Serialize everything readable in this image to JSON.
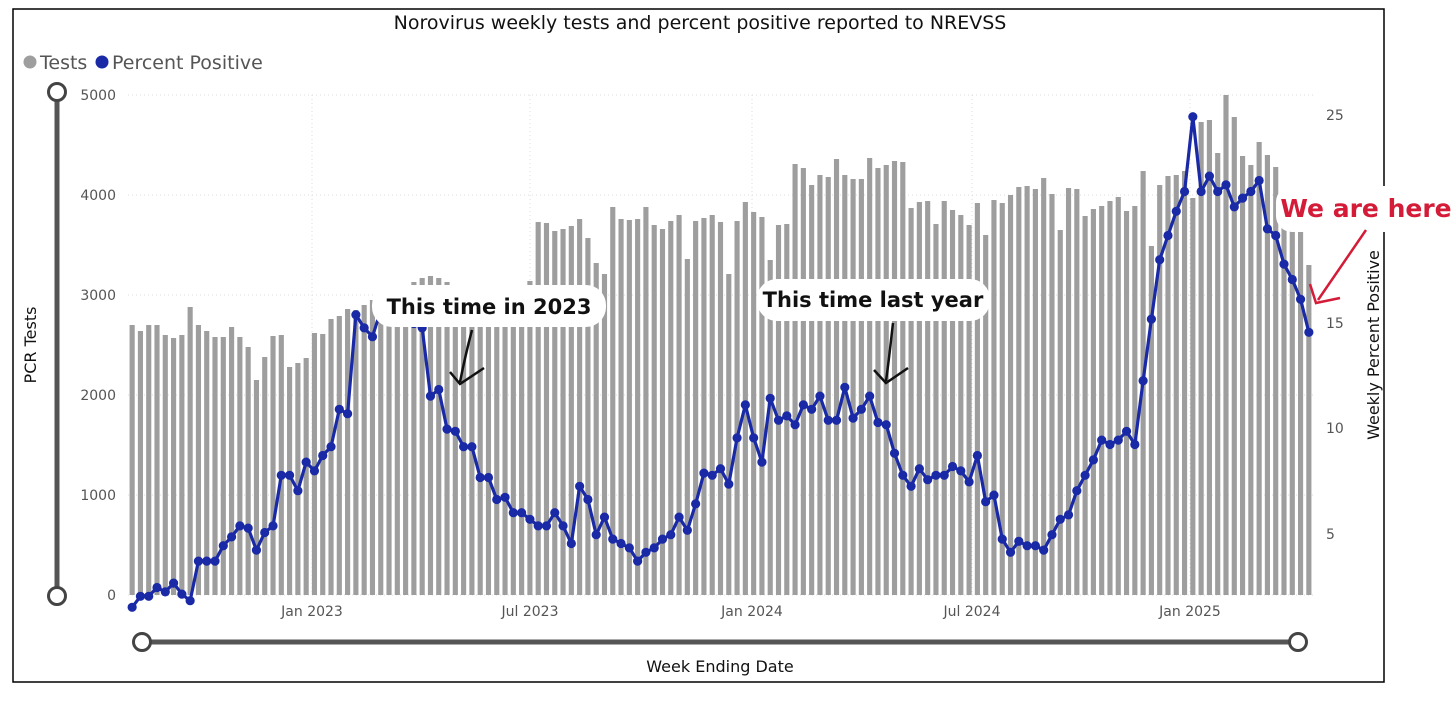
{
  "title": "Norovirus weekly tests and percent positive reported to NREVSS",
  "legend": [
    {
      "label": "Tests",
      "color": "#9e9e9e"
    },
    {
      "label": "Percent Positive",
      "color": "#1a2aa6"
    }
  ],
  "axes": {
    "y_left_title": "PCR Tests",
    "y_right_title": "Weekly Percent Positive",
    "x_title": "Week Ending Date",
    "y_left_ticks": [
      "0",
      "1000",
      "2000",
      "3000",
      "4000",
      "5000"
    ],
    "y_right_ticks": [
      "5",
      "10",
      "15",
      "20",
      "25"
    ],
    "x_ticks": [
      "Jan 2023",
      "Jul 2023",
      "Jan 2024",
      "Jul 2024",
      "Jan 2025"
    ]
  },
  "callouts": {
    "c2023": "This time in 2023",
    "last_year": "This time last year",
    "here": "We are here"
  },
  "chart_data": {
    "type": "bar+line",
    "title": "Norovirus weekly tests and percent positive reported to NREVSS",
    "xlabel": "Week Ending Date",
    "ylabel": "PCR Tests",
    "y2label": "Weekly Percent Positive",
    "ylim": [
      0,
      5000
    ],
    "y2lim": [
      1,
      26
    ],
    "grid": true,
    "legend_position": "top-left",
    "x_start": "2022-08-06",
    "x_interval": "weekly",
    "series": [
      {
        "name": "Tests",
        "type": "bar",
        "color": "#9e9e9e",
        "values": [
          2700,
          2640,
          2700,
          2700,
          2600,
          2570,
          2600,
          2880,
          2700,
          2640,
          2580,
          2580,
          2680,
          2580,
          2480,
          2150,
          2380,
          2590,
          2600,
          2280,
          2320,
          2370,
          2620,
          2610,
          2760,
          2790,
          2860,
          2850,
          2900,
          2950,
          2980,
          3020,
          3050,
          3080,
          3130,
          3170,
          3190,
          3170,
          3130,
          3080,
          3090,
          3100,
          3080,
          3100,
          3060,
          3080,
          3000,
          3050,
          3140,
          3730,
          3720,
          3640,
          3660,
          3690,
          3760,
          3570,
          3320,
          3210,
          3880,
          3760,
          3750,
          3760,
          3880,
          3700,
          3660,
          3740,
          3800,
          3360,
          3740,
          3770,
          3800,
          3730,
          3210,
          3740,
          3930,
          3830,
          3780,
          3350,
          3700,
          3710,
          4310,
          4270,
          4100,
          4200,
          4180,
          4360,
          4200,
          4160,
          4160,
          4370,
          4270,
          4300,
          4340,
          4330,
          3870,
          3930,
          3940,
          3710,
          3940,
          3850,
          3800,
          3700,
          3920,
          3600,
          3950,
          3920,
          4000,
          4080,
          4090,
          4060,
          4170,
          4010,
          3650,
          4070,
          4060,
          3790,
          3860,
          3890,
          3940,
          3980,
          3840,
          3890,
          4240,
          3490,
          4100,
          4190,
          4200,
          4240,
          3970,
          4730,
          4750,
          4420,
          5000,
          4780,
          4390,
          4300,
          4530,
          4400,
          4280,
          3730,
          3650,
          3720,
          3300
        ]
      },
      {
        "name": "Percent Positive",
        "type": "line",
        "color": "#1a2aa6",
        "values": [
          2.6,
          3.1,
          3.1,
          3.5,
          3.3,
          3.7,
          3.2,
          2.9,
          4.7,
          4.7,
          4.7,
          5.4,
          5.8,
          6.3,
          6.2,
          5.2,
          6.0,
          6.3,
          8.6,
          8.6,
          7.9,
          9.2,
          8.8,
          9.5,
          9.9,
          11.6,
          11.4,
          15.9,
          15.3,
          14.9,
          16.1,
          16.3,
          15.9,
          15.7,
          15.5,
          15.3,
          12.2,
          12.5,
          10.7,
          10.6,
          9.9,
          9.9,
          8.5,
          8.5,
          7.5,
          7.6,
          6.9,
          6.9,
          6.6,
          6.3,
          6.3,
          6.9,
          6.3,
          5.5,
          8.1,
          7.5,
          5.9,
          6.7,
          5.7,
          5.5,
          5.3,
          4.7,
          5.1,
          5.3,
          5.7,
          5.9,
          6.7,
          6.1,
          7.3,
          8.7,
          8.6,
          8.9,
          8.2,
          10.3,
          11.8,
          10.3,
          9.2,
          12.1,
          11.1,
          11.3,
          10.9,
          11.8,
          11.6,
          12.2,
          11.1,
          11.1,
          12.6,
          11.2,
          11.6,
          12.2,
          11.0,
          10.9,
          9.6,
          8.6,
          8.1,
          8.9,
          8.4,
          8.6,
          8.6,
          9.0,
          8.8,
          8.3,
          9.5,
          7.4,
          7.7,
          5.7,
          5.1,
          5.6,
          5.4,
          5.4,
          5.2,
          5.9,
          6.6,
          6.8,
          7.9,
          8.6,
          9.3,
          10.2,
          10.0,
          10.2,
          10.6,
          10.0,
          12.9,
          15.7,
          18.4,
          19.5,
          20.6,
          21.5,
          24.9,
          21.5,
          22.2,
          21.5,
          21.8,
          20.8,
          21.2,
          21.5,
          22.0,
          19.8,
          19.5,
          18.2,
          17.5,
          16.6,
          15.1
        ]
      }
    ]
  }
}
